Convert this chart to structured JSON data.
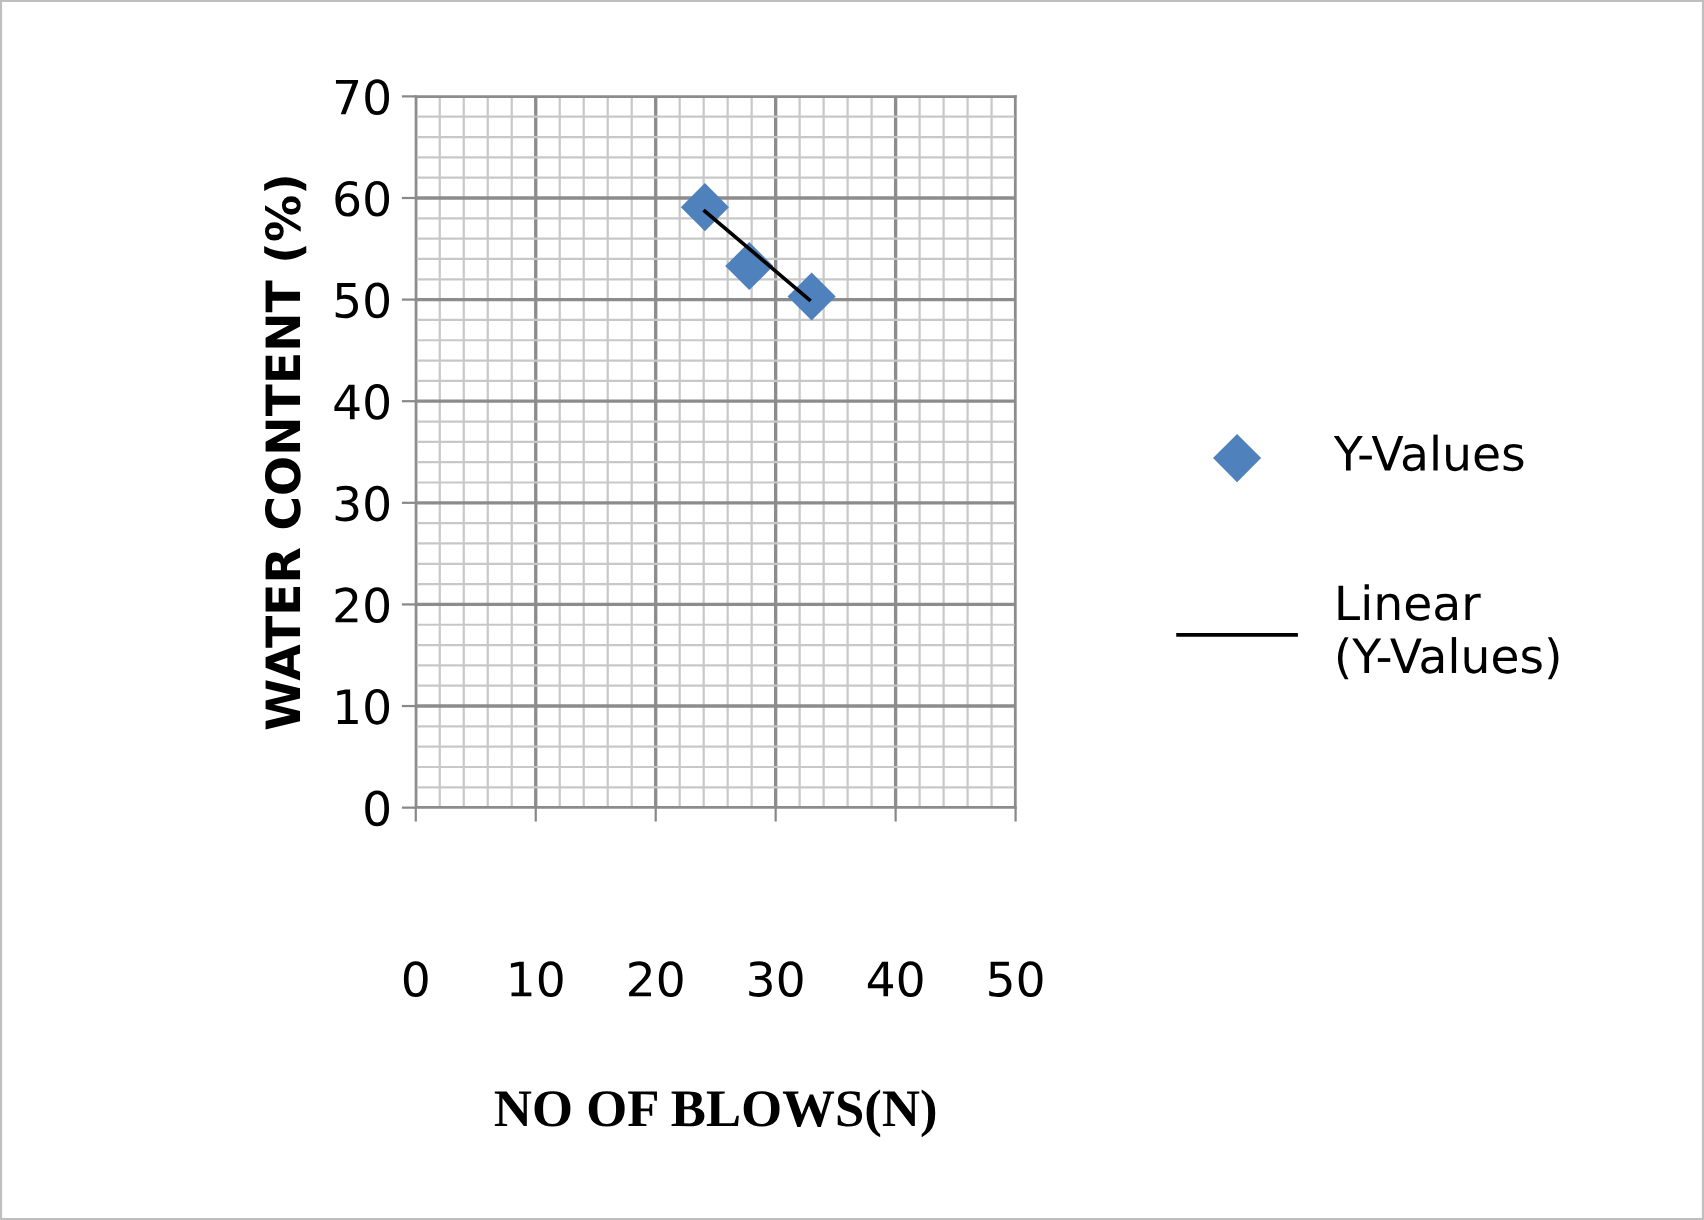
{
  "chart_data": {
    "type": "scatter",
    "xlabel": "NO OF BLOWS(N)",
    "ylabel": "WATER CONTENT (%)",
    "xlim": [
      0,
      50
    ],
    "xticks": [
      0,
      10,
      20,
      30,
      40,
      50
    ],
    "ylim": [
      0,
      70
    ],
    "yticks": [
      0,
      10,
      20,
      30,
      40,
      50,
      60,
      70
    ],
    "grid": true,
    "legend": "right",
    "marker": "diamond",
    "series": [
      {
        "name": "Y-Values",
        "color": "#4f81bd",
        "x": [
          24.1,
          27.8,
          33
        ],
        "values": [
          59.1,
          53.3,
          50.3
        ]
      },
      {
        "name": "Linear (Y-Values)",
        "type": "line",
        "color": "#000000",
        "marker": "none",
        "x": [
          24.1,
          32.8
        ],
        "values": [
          58.7,
          50
        ]
      }
    ]
  }
}
